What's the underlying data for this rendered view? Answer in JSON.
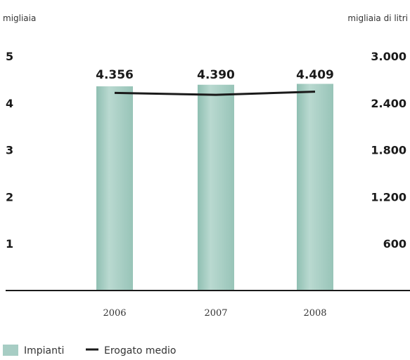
{
  "chart_data": {
    "type": "bar",
    "categories": [
      "2006",
      "2007",
      "2008"
    ],
    "series": [
      {
        "name": "Impianti",
        "kind": "bar",
        "axis": "left",
        "values": [
          4.356,
          4.39,
          4.409
        ],
        "data_labels": [
          "4.356",
          "4.390",
          "4.409"
        ],
        "color": "#a7cdc4"
      },
      {
        "name": "Erogato medio",
        "kind": "line",
        "axis": "right",
        "values": [
          2530,
          2505,
          2545
        ],
        "color": "#1a1a1a"
      }
    ],
    "title": "",
    "y_left": {
      "unit_label": "migliaia",
      "ylim": [
        0,
        5
      ],
      "ticks": [
        1,
        2,
        3,
        4,
        5
      ],
      "tick_labels": [
        "1",
        "2",
        "3",
        "4",
        "5"
      ]
    },
    "y_right": {
      "unit_label": "migliaia di litri",
      "ylim": [
        0,
        3000
      ],
      "ticks": [
        600,
        1200,
        1800,
        2400,
        3000
      ],
      "tick_labels": [
        "600",
        "1.200",
        "1.800",
        "2.400",
        "3.000"
      ]
    },
    "grid": false,
    "legend": {
      "position": "bottom-left",
      "items": [
        {
          "label": "Impianti",
          "symbol": "swatch",
          "color": "#a7cdc4"
        },
        {
          "label": "Erogato medio",
          "symbol": "line",
          "color": "#1a1a1a"
        }
      ]
    }
  }
}
